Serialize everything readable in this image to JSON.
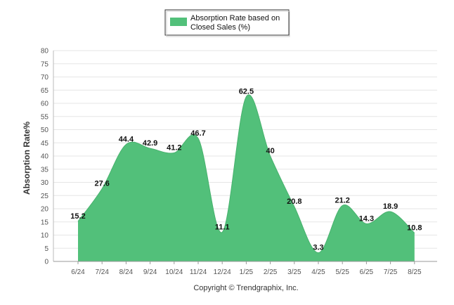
{
  "chart_data": {
    "type": "area",
    "categories": [
      "6/24",
      "7/24",
      "8/24",
      "9/24",
      "10/24",
      "11/24",
      "12/24",
      "1/25",
      "2/25",
      "3/25",
      "4/25",
      "5/25",
      "6/25",
      "7/25",
      "8/25"
    ],
    "series": [
      {
        "name": "Absorption Rate based on Closed Sales (%)",
        "values": [
          15.2,
          27.6,
          44.4,
          42.9,
          41.2,
          46.7,
          11.1,
          62.5,
          40,
          20.8,
          3.3,
          21.2,
          14.3,
          18.9,
          10.8
        ],
        "color": "#52c07a"
      }
    ],
    "data_labels": [
      "15.2",
      "27.6",
      "44.4",
      "42.9",
      "41.2",
      "46.7",
      "11.1",
      "62.5",
      "40",
      "20.8",
      "3.3",
      "21.2",
      "14.3",
      "18.9",
      "10.8"
    ],
    "legend_line1": "Absorption Rate based on",
    "legend_line2": "Closed Sales (%)",
    "legend_position": "top-center",
    "ylabel": "Absorption Rate%",
    "xlabel": "",
    "ylim": [
      0,
      80
    ],
    "yticks": [
      0,
      5,
      10,
      15,
      20,
      25,
      30,
      35,
      40,
      45,
      50,
      55,
      60,
      65,
      70,
      75,
      80
    ],
    "grid": true
  },
  "footer": {
    "copyright": "Copyright © Trendgraphix, Inc."
  }
}
